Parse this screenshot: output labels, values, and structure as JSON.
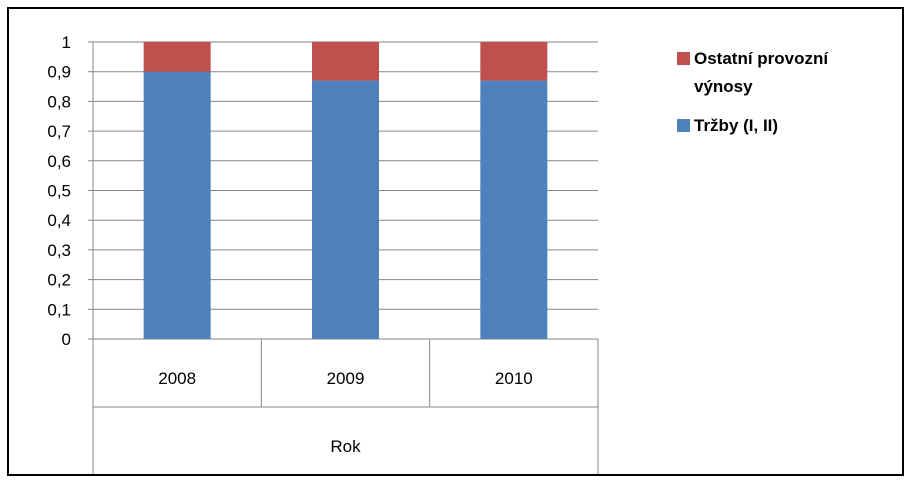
{
  "chart_data": {
    "type": "bar",
    "stacked": true,
    "categories": [
      "2008",
      "2009",
      "2010"
    ],
    "group_label": "Rok",
    "series": [
      {
        "name": "Tržby (I, II)",
        "values": [
          0.9,
          0.87,
          0.87
        ],
        "color": "#4F81BD"
      },
      {
        "name": "Ostatní provozní výnosy",
        "values": [
          0.1,
          0.13,
          0.13
        ],
        "color": "#C0504D"
      }
    ],
    "ylim": [
      0,
      1
    ],
    "yticks": [
      "0",
      "0,1",
      "0,2",
      "0,3",
      "0,4",
      "0,5",
      "0,6",
      "0,7",
      "0,8",
      "0,9",
      "1"
    ],
    "grid": true,
    "legend_position": "right",
    "legend": [
      {
        "label_lines": [
          "Ostatní provozní",
          "výnosy"
        ],
        "color": "#C0504D"
      },
      {
        "label_lines": [
          "Tržby (I, II)"
        ],
        "color": "#4F81BD"
      }
    ]
  }
}
